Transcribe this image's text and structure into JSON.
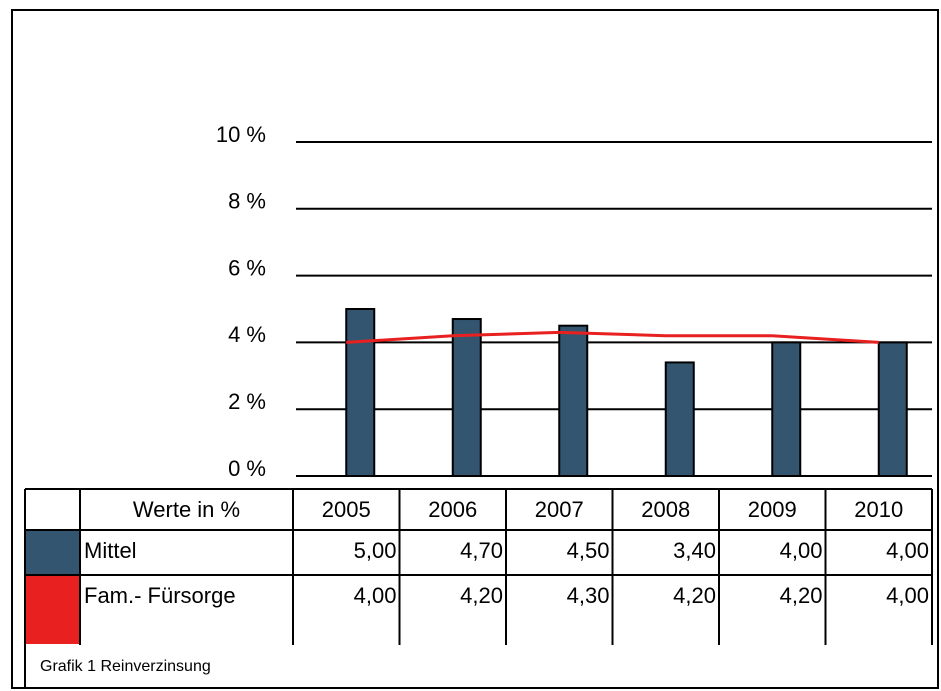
{
  "chart_data": {
    "type": "bar",
    "caption": "Grafik 1 Reinverzinsung",
    "table_header": "Werte in %",
    "categories": [
      "2005",
      "2006",
      "2007",
      "2008",
      "2009",
      "2010"
    ],
    "series": [
      {
        "name": "Mittel",
        "type": "bar",
        "color": "#34556f",
        "values": [
          5,
          4.7,
          4.5,
          3.4,
          4,
          4
        ],
        "value_labels": [
          "5,00",
          "4,70",
          "4,50",
          "3,40",
          "4,00",
          "4,00"
        ]
      },
      {
        "name": "Fam.- Fürsorge",
        "type": "line",
        "color": "#e82020",
        "values": [
          4,
          4.2,
          4.3,
          4.2,
          4.2,
          4
        ],
        "value_labels": [
          "4,00",
          "4,20",
          "4,30",
          "4,20",
          "4,20",
          "4,00"
        ]
      }
    ],
    "ylim": [
      0,
      10
    ],
    "yticks": [
      {
        "value": 0,
        "label": "0 %"
      },
      {
        "value": 2,
        "label": "2 %"
      },
      {
        "value": 4,
        "label": "4 %"
      },
      {
        "value": 6,
        "label": "6 %"
      },
      {
        "value": 8,
        "label": "8 %"
      },
      {
        "value": 10,
        "label": "10 %"
      }
    ],
    "grid": true
  }
}
